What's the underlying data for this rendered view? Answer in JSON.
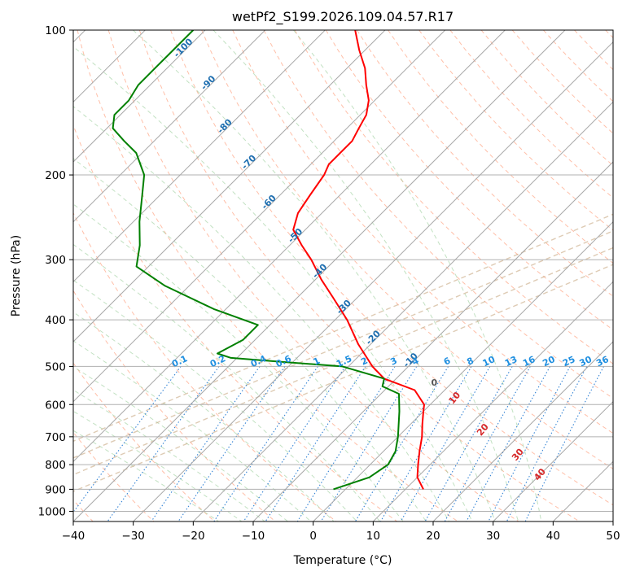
{
  "chart_data": {
    "type": "line",
    "subtype": "skew-T log-P diagram",
    "title": "wetPf2_S199.2026.109.04.57.R17",
    "xlabel": "Temperature (°C)",
    "ylabel": "Pressure (hPa)",
    "xlim": [
      -40,
      50
    ],
    "ylim": [
      1050,
      100
    ],
    "y_scale": "log",
    "x_ticks": [
      -40,
      -30,
      -20,
      -10,
      0,
      10,
      20,
      30,
      40,
      50
    ],
    "y_ticks": [
      100,
      200,
      300,
      400,
      500,
      600,
      700,
      800,
      900,
      1000
    ],
    "grid": true,
    "series": [
      {
        "role": "temperature",
        "color": "#ff0000",
        "points": [
          {
            "p": 100,
            "t": -75
          },
          {
            "p": 110,
            "t": -71
          },
          {
            "p": 120,
            "t": -67
          },
          {
            "p": 130,
            "t": -64
          },
          {
            "p": 140,
            "t": -61
          },
          {
            "p": 150,
            "t": -59
          },
          {
            "p": 160,
            "t": -58
          },
          {
            "p": 170,
            "t": -57
          },
          {
            "p": 180,
            "t": -57
          },
          {
            "p": 190,
            "t": -57
          },
          {
            "p": 200,
            "t": -56
          },
          {
            "p": 220,
            "t": -55
          },
          {
            "p": 240,
            "t": -54
          },
          {
            "p": 260,
            "t": -52
          },
          {
            "p": 280,
            "t": -48
          },
          {
            "p": 300,
            "t": -44
          },
          {
            "p": 330,
            "t": -39
          },
          {
            "p": 360,
            "t": -34
          },
          {
            "p": 400,
            "t": -28
          },
          {
            "p": 450,
            "t": -22
          },
          {
            "p": 500,
            "t": -16
          },
          {
            "p": 530,
            "t": -12
          },
          {
            "p": 560,
            "t": -5
          },
          {
            "p": 600,
            "t": -1
          },
          {
            "p": 620,
            "t": 0
          },
          {
            "p": 660,
            "t": 2
          },
          {
            "p": 700,
            "t": 4
          },
          {
            "p": 750,
            "t": 6
          },
          {
            "p": 800,
            "t": 8
          },
          {
            "p": 850,
            "t": 10
          },
          {
            "p": 900,
            "t": 13
          }
        ]
      },
      {
        "role": "dewpoint",
        "color": "#008000",
        "points": [
          {
            "p": 100,
            "t": -102
          },
          {
            "p": 110,
            "t": -102
          },
          {
            "p": 120,
            "t": -102
          },
          {
            "p": 130,
            "t": -102
          },
          {
            "p": 140,
            "t": -101
          },
          {
            "p": 150,
            "t": -101
          },
          {
            "p": 160,
            "t": -99
          },
          {
            "p": 170,
            "t": -95
          },
          {
            "p": 180,
            "t": -91
          },
          {
            "p": 200,
            "t": -86
          },
          {
            "p": 220,
            "t": -83
          },
          {
            "p": 250,
            "t": -79
          },
          {
            "p": 280,
            "t": -75
          },
          {
            "p": 310,
            "t": -72
          },
          {
            "p": 340,
            "t": -64
          },
          {
            "p": 380,
            "t": -52
          },
          {
            "p": 410,
            "t": -42
          },
          {
            "p": 440,
            "t": -42
          },
          {
            "p": 470,
            "t": -44
          },
          {
            "p": 480,
            "t": -41
          },
          {
            "p": 490,
            "t": -31
          },
          {
            "p": 500,
            "t": -21
          },
          {
            "p": 530,
            "t": -12
          },
          {
            "p": 550,
            "t": -11
          },
          {
            "p": 570,
            "t": -7
          },
          {
            "p": 620,
            "t": -4
          },
          {
            "p": 700,
            "t": 0
          },
          {
            "p": 750,
            "t": 2
          },
          {
            "p": 800,
            "t": 3
          },
          {
            "p": 850,
            "t": 2
          },
          {
            "p": 900,
            "t": -2
          }
        ]
      }
    ],
    "background_lines": {
      "isotherms_skewed": {
        "color": "#b0b0b0",
        "values": [
          -100,
          -90,
          -80,
          -70,
          -60,
          -50,
          -40,
          -30,
          -20,
          -10,
          0,
          10,
          20,
          30,
          40,
          50
        ]
      },
      "dry_adiabats": {
        "color": "#ff8a60",
        "style": "dashed"
      },
      "moist_adiabats": {
        "color": "#90c890",
        "style": "dashed"
      },
      "mixing_ratio_lines": {
        "color": "#1f77d0",
        "style": "dotted",
        "labels": [
          "0.1",
          "0.2",
          "0.4",
          "0.6",
          "1",
          "1.5",
          "2",
          "3",
          "4",
          "6",
          "8",
          "10",
          "13",
          "16",
          "20",
          "25",
          "30",
          "36"
        ]
      },
      "level_lines_pressure": {
        "color": "#c8a882",
        "style": "dashed"
      }
    },
    "annotations": {
      "isotherm_labels": {
        "color": "#1f6fb0",
        "values": [
          "-100",
          "-90",
          "-80",
          "-70",
          "-60",
          "-50",
          "-40",
          "-30",
          "-20",
          "-10"
        ]
      },
      "theta_e_labels": {
        "color": "#d62728",
        "values": [
          "10",
          "20",
          "30",
          "40"
        ]
      },
      "zero_label": {
        "color": "#555555",
        "value": "0"
      }
    }
  }
}
